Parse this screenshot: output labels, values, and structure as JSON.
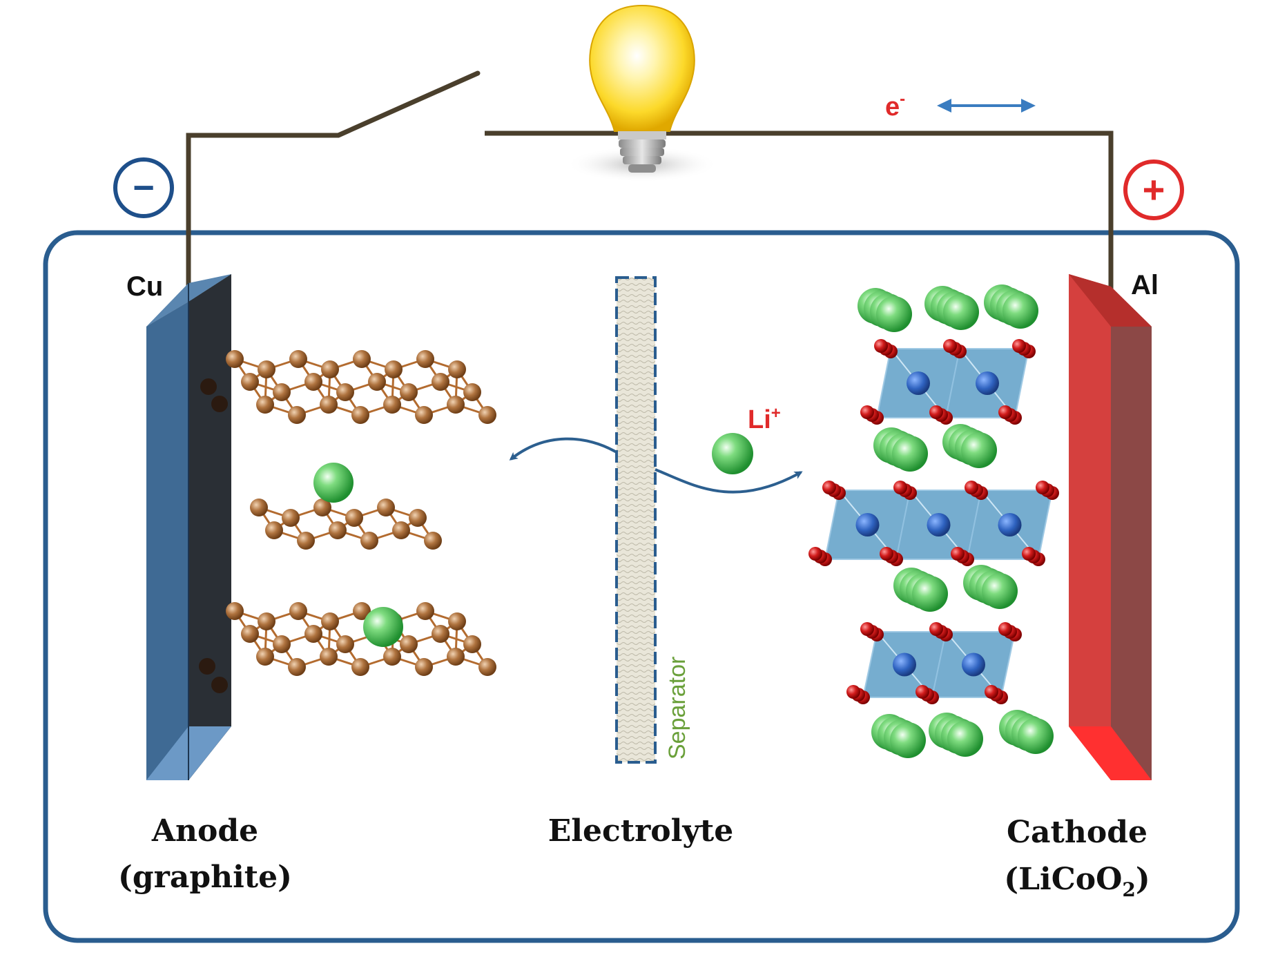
{
  "labels": {
    "electron": "e",
    "electron_sup": "-",
    "lithium_ion": "Li",
    "lithium_ion_sup": "+",
    "minus_sign": "−",
    "plus_sign": "+",
    "anode_collector": "Cu",
    "cathode_collector": "Al",
    "separator": "Separator",
    "anode_title": "Anode",
    "anode_material": "(graphite)",
    "electrolyte": "Electrolyte",
    "cathode_title": "Cathode",
    "cathode_material_prefix": "(LiCoO",
    "cathode_material_sub": "2",
    "cathode_material_suffix": ")"
  },
  "colors": {
    "wire": "#4a3f2c",
    "case_border": "#2a5d8f",
    "negative": "#1e4f8a",
    "positive": "#e02a2a",
    "anode_plate": "#3f6a94",
    "cathode_plate": "#d8423f",
    "carbon": "#a56a38",
    "lithium": "#3ab54a",
    "oxygen": "#c8111a",
    "cobalt": "#2c5fb0",
    "octahedron": "#5f9fc7",
    "separator_text": "#6aa03a",
    "arrow": "#2c5f8f",
    "text_dark": "#111111"
  },
  "icons": {
    "bulb": "light-bulb-icon",
    "switch": "open-switch-icon",
    "double_arrow": "double-arrow-icon"
  }
}
